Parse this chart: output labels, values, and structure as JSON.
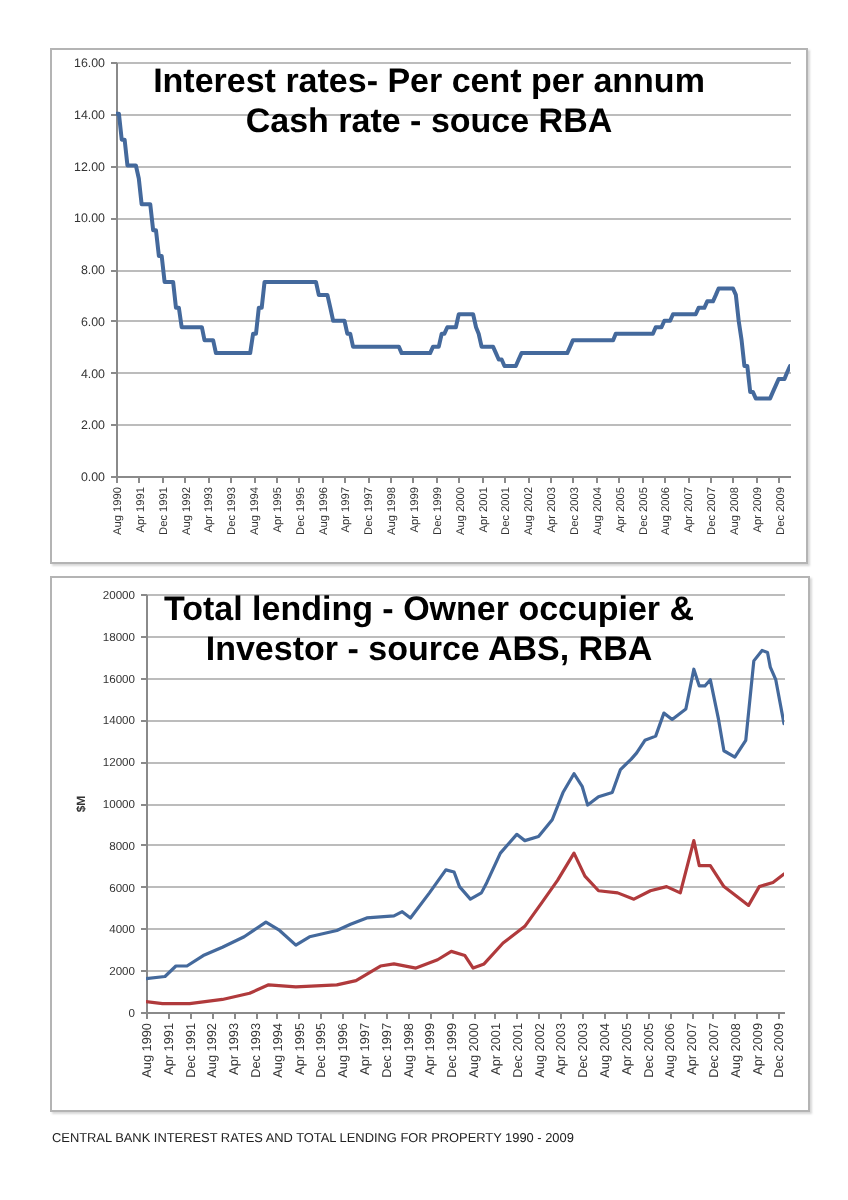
{
  "chart_data": [
    {
      "type": "line",
      "title": "Interest rates- Per cent per annum Cash rate - souce RBA",
      "x": [
        "1990-08",
        "1990-09",
        "1990-10",
        "1990-11",
        "1990-12",
        "1991-03",
        "1991-04",
        "1991-05",
        "1991-08",
        "1991-09",
        "1991-10",
        "1991-11",
        "1991-12",
        "1992-01",
        "1992-04",
        "1992-05",
        "1992-06",
        "1992-07",
        "1993-02",
        "1993-03",
        "1993-06",
        "1993-07",
        "1994-07",
        "1994-08",
        "1994-09",
        "1994-10",
        "1994-11",
        "1994-12",
        "1996-06",
        "1996-07",
        "1996-10",
        "1996-11",
        "1996-12",
        "1997-04",
        "1997-05",
        "1997-06",
        "1997-07",
        "1998-11",
        "1998-12",
        "1999-10",
        "1999-11",
        "2000-01",
        "2000-02",
        "2000-03",
        "2000-04",
        "2000-07",
        "2000-08",
        "2001-01",
        "2001-02",
        "2001-03",
        "2001-04",
        "2001-08",
        "2001-09",
        "2001-10",
        "2001-11",
        "2001-12",
        "2002-04",
        "2002-05",
        "2002-06",
        "2003-10",
        "2003-11",
        "2003-12",
        "2005-02",
        "2005-03",
        "2006-04",
        "2006-05",
        "2006-07",
        "2006-08",
        "2006-10",
        "2006-11",
        "2007-07",
        "2007-08",
        "2007-10",
        "2007-11",
        "2008-01",
        "2008-02",
        "2008-03",
        "2008-08",
        "2008-09",
        "2008-10",
        "2008-11",
        "2008-12",
        "2009-01",
        "2009-02",
        "2009-03",
        "2009-04",
        "2009-09",
        "2009-10",
        "2009-11",
        "2009-12",
        "2010-02",
        "2010-03",
        "2010-04"
      ],
      "series": [
        {
          "color": "#44699c",
          "values": [
            14,
            14,
            13,
            13,
            12,
            12,
            11.5,
            10.5,
            10.5,
            9.5,
            9.5,
            8.5,
            8.5,
            7.5,
            7.5,
            6.5,
            6.5,
            5.75,
            5.75,
            5.25,
            5.25,
            4.75,
            4.75,
            5.5,
            5.5,
            6.5,
            6.5,
            7.5,
            7.5,
            7,
            7,
            6.5,
            6,
            6,
            5.5,
            5.5,
            5,
            5,
            4.75,
            4.75,
            5,
            5,
            5.5,
            5.5,
            5.75,
            5.75,
            6.25,
            6.25,
            5.75,
            5.5,
            5,
            5,
            4.75,
            4.5,
            4.5,
            4.25,
            4.25,
            4.5,
            4.75,
            4.75,
            5,
            5.25,
            5.25,
            5.5,
            5.5,
            5.75,
            5.75,
            6,
            6,
            6.25,
            6.25,
            6.5,
            6.5,
            6.75,
            6.75,
            7,
            7.25,
            7.25,
            7,
            6,
            5.25,
            4.25,
            4.25,
            3.25,
            3.25,
            3,
            3,
            3.25,
            3.5,
            3.75,
            3.75,
            4,
            4.25
          ]
        }
      ],
      "xlim": [
        "1990-08",
        "2010-04"
      ],
      "xticks": [
        {
          "value": "1990-08",
          "label": "Aug 1990"
        },
        {
          "value": "1991-04",
          "label": "Apr 1991"
        },
        {
          "value": "1991-12",
          "label": "Dec 1991"
        },
        {
          "value": "1992-08",
          "label": "Aug 1992"
        },
        {
          "value": "1993-04",
          "label": "Apr 1993"
        },
        {
          "value": "1993-12",
          "label": "Dec 1993"
        },
        {
          "value": "1994-08",
          "label": "Aug 1994"
        },
        {
          "value": "1995-04",
          "label": "Apr 1995"
        },
        {
          "value": "1995-12",
          "label": "Dec 1995"
        },
        {
          "value": "1996-08",
          "label": "Aug 1996"
        },
        {
          "value": "1997-04",
          "label": "Apr 1997"
        },
        {
          "value": "1997-12",
          "label": "Dec 1997"
        },
        {
          "value": "1998-08",
          "label": "Aug 1998"
        },
        {
          "value": "1999-04",
          "label": "Apr 1999"
        },
        {
          "value": "1999-12",
          "label": "Dec 1999"
        },
        {
          "value": "2000-08",
          "label": "Aug 2000"
        },
        {
          "value": "2001-04",
          "label": "Apr 2001"
        },
        {
          "value": "2001-12",
          "label": "Dec 2001"
        },
        {
          "value": "2002-08",
          "label": "Aug 2002"
        },
        {
          "value": "2003-04",
          "label": "Apr 2003"
        },
        {
          "value": "2003-12",
          "label": "Dec 2003"
        },
        {
          "value": "2004-08",
          "label": "Aug 2004"
        },
        {
          "value": "2005-04",
          "label": "Apr 2005"
        },
        {
          "value": "2005-12",
          "label": "Dec 2005"
        },
        {
          "value": "2006-08",
          "label": "Aug 2006"
        },
        {
          "value": "2007-04",
          "label": "Apr 2007"
        },
        {
          "value": "2007-12",
          "label": "Dec 2007"
        },
        {
          "value": "2008-08",
          "label": "Aug 2008"
        },
        {
          "value": "2009-04",
          "label": "Apr 2009"
        },
        {
          "value": "2009-12",
          "label": "Dec 2009"
        }
      ],
      "ylim": [
        0,
        16
      ],
      "yticks": [
        {
          "value": 0,
          "label": "0.00"
        },
        {
          "value": 2,
          "label": "2.00"
        },
        {
          "value": 4,
          "label": "4.00"
        },
        {
          "value": 6,
          "label": "6.00"
        },
        {
          "value": 8,
          "label": "8.00"
        },
        {
          "value": 10,
          "label": "10.00"
        },
        {
          "value": 12,
          "label": "12.00"
        },
        {
          "value": 14,
          "label": "14.00"
        },
        {
          "value": 16,
          "label": "16.00"
        }
      ],
      "grid": "y"
    },
    {
      "type": "line",
      "title": "Total lending - Owner occupier & Investor - source ABS, RBA",
      "ylabel": "$M",
      "series": [
        {
          "color": "#44699c",
          "x": [
            "1990-08",
            "1991-03",
            "1991-07",
            "1991-11",
            "1992-05",
            "1992-12",
            "1993-08",
            "1994-04",
            "1994-09",
            "1995-03",
            "1995-08",
            "1996-06",
            "1996-11",
            "1997-05",
            "1998-03",
            "1998-06",
            "1998-09",
            "1999-04",
            "1999-10",
            "2000-01",
            "2000-03",
            "2000-07",
            "2000-11",
            "2001-01",
            "2001-06",
            "2001-12",
            "2002-03",
            "2002-08",
            "2003-01",
            "2003-05",
            "2003-09",
            "2003-12",
            "2004-02",
            "2004-06",
            "2004-11",
            "2005-02",
            "2005-06",
            "2005-08",
            "2005-11",
            "2006-03",
            "2006-06",
            "2006-09",
            "2007-02",
            "2007-05",
            "2007-07",
            "2007-09",
            "2007-11",
            "2008-02",
            "2008-04",
            "2008-08",
            "2008-12",
            "2009-03",
            "2009-06",
            "2009-08",
            "2009-09",
            "2009-11",
            "2010-02"
          ],
          "values": [
            1600,
            1700,
            2200,
            2200,
            2700,
            3100,
            3600,
            4300,
            3900,
            3200,
            3600,
            3900,
            4200,
            4500,
            4600,
            4800,
            4500,
            5700,
            6800,
            6700,
            6000,
            5400,
            5700,
            6200,
            7600,
            8500,
            8200,
            8400,
            9200,
            10500,
            11400,
            10800,
            9900,
            10300,
            10500,
            11600,
            12100,
            12400,
            13000,
            13200,
            14300,
            14000,
            14500,
            16400,
            15600,
            15600,
            15900,
            14000,
            12500,
            12200,
            13000,
            16800,
            17300,
            17200,
            16500,
            15900,
            13800
          ]
        },
        {
          "color": "#b03a3c",
          "x": [
            "1990-08",
            "1991-02",
            "1991-12",
            "1992-12",
            "1993-10",
            "1994-05",
            "1995-03",
            "1996-06",
            "1997-01",
            "1997-10",
            "1998-03",
            "1998-11",
            "1999-07",
            "1999-12",
            "2000-05",
            "2000-08",
            "2000-12",
            "2001-07",
            "2002-03",
            "2002-09",
            "2003-03",
            "2003-09",
            "2004-01",
            "2004-06",
            "2005-01",
            "2005-07",
            "2006-01",
            "2006-07",
            "2006-12",
            "2007-05",
            "2007-07",
            "2007-11",
            "2008-04",
            "2008-09",
            "2009-01",
            "2009-05",
            "2009-10",
            "2010-02"
          ],
          "values": [
            500,
            400,
            400,
            600,
            900,
            1300,
            1200,
            1300,
            1500,
            2200,
            2300,
            2100,
            2500,
            2900,
            2700,
            2100,
            2300,
            3300,
            4100,
            5200,
            6300,
            7600,
            6500,
            5800,
            5700,
            5400,
            5800,
            6000,
            5700,
            8200,
            7000,
            7000,
            6000,
            5500,
            5100,
            6000,
            6200,
            6600
          ]
        }
      ],
      "xlim": [
        "1990-08",
        "2010-02"
      ],
      "xticks": [
        {
          "value": "1990-08",
          "label": "Aug 1990"
        },
        {
          "value": "1991-04",
          "label": "Apr 1991"
        },
        {
          "value": "1991-12",
          "label": "Dec 1991"
        },
        {
          "value": "1992-08",
          "label": "Aug 1992"
        },
        {
          "value": "1993-04",
          "label": "Apr 1993"
        },
        {
          "value": "1993-12",
          "label": "Dec 1993"
        },
        {
          "value": "1994-08",
          "label": "Aug 1994"
        },
        {
          "value": "1995-04",
          "label": "Apr 1995"
        },
        {
          "value": "1995-12",
          "label": "Dec 1995"
        },
        {
          "value": "1996-08",
          "label": "Aug 1996"
        },
        {
          "value": "1997-04",
          "label": "Apr 1997"
        },
        {
          "value": "1997-12",
          "label": "Dec 1997"
        },
        {
          "value": "1998-08",
          "label": "Aug 1998"
        },
        {
          "value": "1999-04",
          "label": "Apr 1999"
        },
        {
          "value": "1999-12",
          "label": "Dec 1999"
        },
        {
          "value": "2000-08",
          "label": "Aug 2000"
        },
        {
          "value": "2001-04",
          "label": "Apr 2001"
        },
        {
          "value": "2001-12",
          "label": "Dec 2001"
        },
        {
          "value": "2002-08",
          "label": "Aug 2002"
        },
        {
          "value": "2003-04",
          "label": "Apr 2003"
        },
        {
          "value": "2003-12",
          "label": "Dec 2003"
        },
        {
          "value": "2004-08",
          "label": "Aug 2004"
        },
        {
          "value": "2005-04",
          "label": "Apr 2005"
        },
        {
          "value": "2005-12",
          "label": "Dec 2005"
        },
        {
          "value": "2006-08",
          "label": "Aug 2006"
        },
        {
          "value": "2007-04",
          "label": "Apr 2007"
        },
        {
          "value": "2007-12",
          "label": "Dec 2007"
        },
        {
          "value": "2008-08",
          "label": "Aug 2008"
        },
        {
          "value": "2009-04",
          "label": "Apr 2009"
        },
        {
          "value": "2009-12",
          "label": "Dec 2009"
        }
      ],
      "ylim": [
        0,
        20000
      ],
      "yticks": [
        0,
        2000,
        4000,
        6000,
        8000,
        10000,
        12000,
        14000,
        16000,
        18000,
        20000
      ],
      "grid": "y",
      "annotations": [
        "CENTRAL BANK INTEREST RATES AND TOTAL LENDING FOR PROPERTY 1990 - 2009"
      ]
    }
  ]
}
